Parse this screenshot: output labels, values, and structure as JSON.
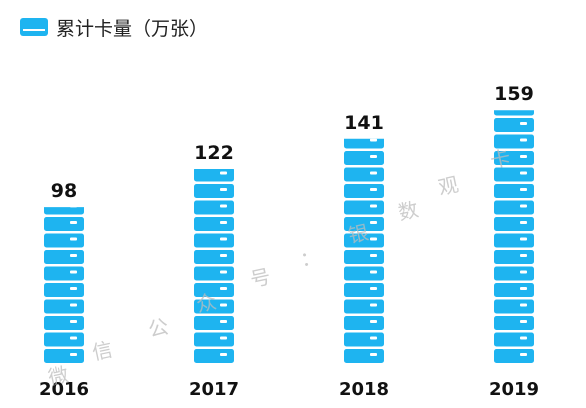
{
  "chart_data": {
    "type": "bar",
    "legend": "累计卡量（万张）",
    "categories": [
      "2016",
      "2017",
      "2018",
      "2019"
    ],
    "values": [
      98,
      122,
      141,
      159
    ],
    "bar_color": "#1eb4f0",
    "legend_position": "top-left",
    "grid": false
  },
  "watermark": {
    "text": "微信公众号：银数观卡",
    "chars": [
      "微",
      "信",
      "公",
      "众",
      "号",
      "：",
      "银",
      "数",
      "观",
      "卡"
    ]
  }
}
